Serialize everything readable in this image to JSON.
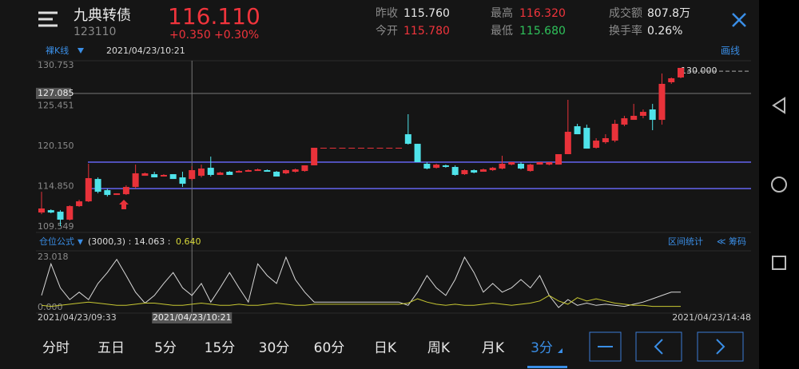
{
  "header": {
    "name": "九典转债",
    "code": "123110",
    "price": "116.110",
    "change": "+0.350",
    "change_pct": "+0.30%",
    "stats": [
      {
        "label": "昨收",
        "value": "115.760",
        "color": "#e8e8e8"
      },
      {
        "label": "今开",
        "value": "115.780",
        "color": "#f0343c"
      },
      {
        "label": "最高",
        "value": "116.320",
        "color": "#f0343c"
      },
      {
        "label": "最低",
        "value": "115.680",
        "color": "#2fc25b"
      },
      {
        "label": "成交额",
        "value": "807.8万",
        "color": "#e8e8e8"
      },
      {
        "label": "换手率",
        "value": "0.26%",
        "color": "#e8e8e8"
      }
    ]
  },
  "toolbar": {
    "mode": "裸K线",
    "date": "2021/04/23/10:21",
    "draw": "画线"
  },
  "chart_data": {
    "type": "candlestick",
    "up_color": "#e8323a",
    "down_color": "#4fe3ea",
    "ylim": [
      109.549,
      130.753
    ],
    "yticks": [
      130.753,
      {
        "value": 125.451,
        "label": "125.451"
      },
      {
        "value": 120.15,
        "label": "120.150"
      },
      {
        "value": 114.85,
        "label": "114.850"
      },
      109.549
    ],
    "crosshair_price": 127.085,
    "annotation": {
      "value": 130,
      "label": "130.000"
    },
    "horizontal_lines": [
      118.05,
      114.58
    ],
    "horizontal_line_color": "#6464f0",
    "categories": [
      "2021/04/23/09:33",
      null,
      null,
      null,
      null,
      null,
      null,
      null,
      null,
      null,
      null,
      null,
      null,
      null,
      null,
      null,
      "2021/04/23/10:21",
      null,
      null,
      null,
      null,
      null,
      null,
      null,
      null,
      null,
      null,
      null,
      null,
      null,
      null,
      null,
      null,
      null,
      null,
      null,
      null,
      null,
      null,
      null,
      null,
      null,
      null,
      null,
      null,
      null,
      null,
      null,
      null,
      null,
      null,
      null,
      null,
      null,
      null,
      null,
      null,
      null,
      null,
      null,
      null,
      null,
      null,
      null,
      null,
      null,
      null,
      null,
      "2021/04/23/14:48"
    ],
    "open": [
      111.43,
      111.74,
      111.54,
      110.49,
      112.27,
      112.9,
      115.84,
      114.37,
      113.74,
      113.84,
      114.79,
      116.26,
      116.47,
      116.16,
      116.47,
      116.05,
      115.84,
      116.26,
      117.31,
      116.37,
      116.79,
      116.68,
      116.79,
      116.89,
      117.0,
      116.79,
      116.58,
      116.79,
      116.89,
      117.63,
      119.94,
      119.94,
      119.94,
      119.94,
      119.94,
      119.94,
      119.94,
      119.94,
      119.94,
      121.72,
      120.46,
      117.84,
      117.31,
      117.63,
      117.42,
      116.47,
      117.0,
      116.79,
      117.0,
      117.21,
      117.73,
      117.84,
      116.89,
      117.73,
      117.73,
      117.73,
      119.1,
      122.77,
      122.56,
      119.94,
      120.67,
      120.88,
      122.98,
      123.61,
      124.14,
      124.98,
      123.61,
      128.55,
      129.18
    ],
    "high": [
      114.16,
      111.85,
      111.74,
      112.38,
      113.11,
      117.84,
      116.05,
      114.58,
      113.95,
      115.0,
      117.73,
      116.68,
      116.79,
      116.47,
      116.47,
      116.79,
      117.52,
      117.73,
      118.78,
      116.79,
      116.89,
      117.0,
      117.1,
      117.21,
      117.1,
      116.89,
      117.1,
      117.21,
      117.63,
      119.94,
      119.94,
      119.94,
      119.94,
      119.94,
      119.94,
      119.94,
      119.94,
      119.94,
      119.94,
      124.35,
      120.46,
      118.05,
      117.84,
      117.73,
      117.63,
      117.1,
      117.1,
      117.21,
      117.42,
      118.89,
      118.05,
      118.05,
      117.84,
      118.05,
      118.05,
      119.1,
      126.24,
      123.09,
      122.98,
      121.2,
      121.72,
      123.61,
      124.14,
      125.71,
      124.98,
      125.71,
      129.7,
      129.18,
      130.44
    ],
    "low": [
      111.22,
      111.33,
      109.65,
      110.38,
      112.17,
      112.8,
      113.95,
      113.53,
      113.74,
      113.74,
      114.58,
      116.26,
      116.05,
      116.16,
      115.84,
      114.79,
      115.63,
      116.05,
      116.16,
      116.37,
      116.37,
      116.68,
      116.79,
      116.89,
      116.79,
      116.16,
      116.47,
      116.68,
      116.79,
      117.63,
      119.94,
      119.94,
      119.94,
      119.94,
      119.94,
      119.94,
      119.94,
      119.94,
      119.94,
      120.36,
      118.05,
      117.1,
      117.21,
      117.31,
      116.26,
      116.37,
      116.58,
      116.79,
      116.89,
      117.1,
      117.63,
      117.1,
      116.79,
      117.73,
      117.63,
      117.73,
      119.1,
      121.72,
      119.83,
      119.83,
      120.46,
      120.67,
      122.77,
      123.61,
      123.82,
      122.25,
      122.98,
      128.34,
      129.07
    ],
    "close": [
      111.96,
      111.43,
      110.49,
      112.27,
      112.9,
      115.95,
      114.16,
      113.74,
      113.95,
      114.79,
      116.58,
      116.58,
      116.05,
      116.37,
      115.84,
      115.21,
      117.0,
      117.21,
      116.37,
      116.68,
      116.37,
      116.89,
      117.0,
      117.1,
      116.79,
      116.16,
      117.0,
      117.1,
      117.63,
      119.94,
      119.94,
      119.94,
      119.94,
      119.94,
      119.94,
      119.94,
      119.94,
      119.94,
      119.94,
      120.46,
      118.05,
      117.21,
      117.73,
      117.42,
      116.37,
      117.0,
      116.68,
      117.1,
      117.31,
      117.84,
      118.05,
      117.21,
      117.73,
      118.05,
      118.05,
      119.1,
      122.04,
      121.72,
      119.83,
      120.88,
      121.2,
      123.09,
      123.82,
      124.14,
      124.66,
      123.61,
      128.34,
      129.07,
      130.44
    ],
    "indicator": {
      "title": "仓位公式",
      "params": "(3000,3) : 14.063 :",
      "value": "0.640",
      "range_stats": "区间统计",
      "chips": "≪ 筹码",
      "ylim": [
        0,
        23.018
      ],
      "yticks": [
        23.018,
        {
          "value": 0,
          "label": "0.000"
        }
      ],
      "series": [
        {
          "color": "#d8d8d8",
          "values": [
            5.5,
            20,
            9,
            3.6,
            7,
            3.6,
            11,
            16,
            22,
            14.6,
            7,
            2,
            5.5,
            11,
            16,
            9,
            5.5,
            11,
            2.5,
            9,
            16,
            9,
            2.5,
            20,
            14.6,
            11,
            23,
            12.8,
            7,
            2.5,
            2.5,
            2.5,
            2.5,
            2.5,
            2.5,
            2.5,
            2.5,
            2.5,
            2.5,
            1,
            7,
            14.6,
            9,
            5.5,
            12.8,
            23,
            16,
            7,
            11,
            7,
            9,
            12.8,
            9,
            14.6,
            5.5,
            0,
            3.6,
            1,
            2,
            1,
            1.5,
            1,
            0.5,
            1.5,
            2.5,
            4,
            5.5,
            7,
            7
          ]
        },
        {
          "color": "#c8c832",
          "values": [
            1,
            0.5,
            1,
            1.5,
            2,
            2.5,
            2,
            1.5,
            1,
            1,
            1.5,
            2,
            2,
            1.5,
            1,
            1,
            1.5,
            2,
            1.5,
            1,
            1,
            1.5,
            1,
            1,
            1.5,
            2,
            1.5,
            1,
            1,
            1.5,
            1.5,
            1.5,
            1.5,
            1.5,
            1.5,
            1.5,
            1.5,
            1.5,
            1.5,
            2,
            4,
            2.5,
            1.5,
            1,
            1.5,
            1,
            1,
            1.5,
            2,
            1.5,
            1,
            1.5,
            2,
            3,
            5.5,
            3,
            1.5,
            4.5,
            3,
            4,
            3,
            2,
            1.5,
            1,
            1,
            0.5,
            0.5,
            0.5,
            0.5
          ]
        }
      ]
    }
  },
  "tabs": {
    "items": [
      "分时",
      "五日",
      "5分",
      "15分",
      "30分",
      "60分",
      "日K",
      "周K",
      "月K",
      "3分"
    ],
    "active": 9
  }
}
